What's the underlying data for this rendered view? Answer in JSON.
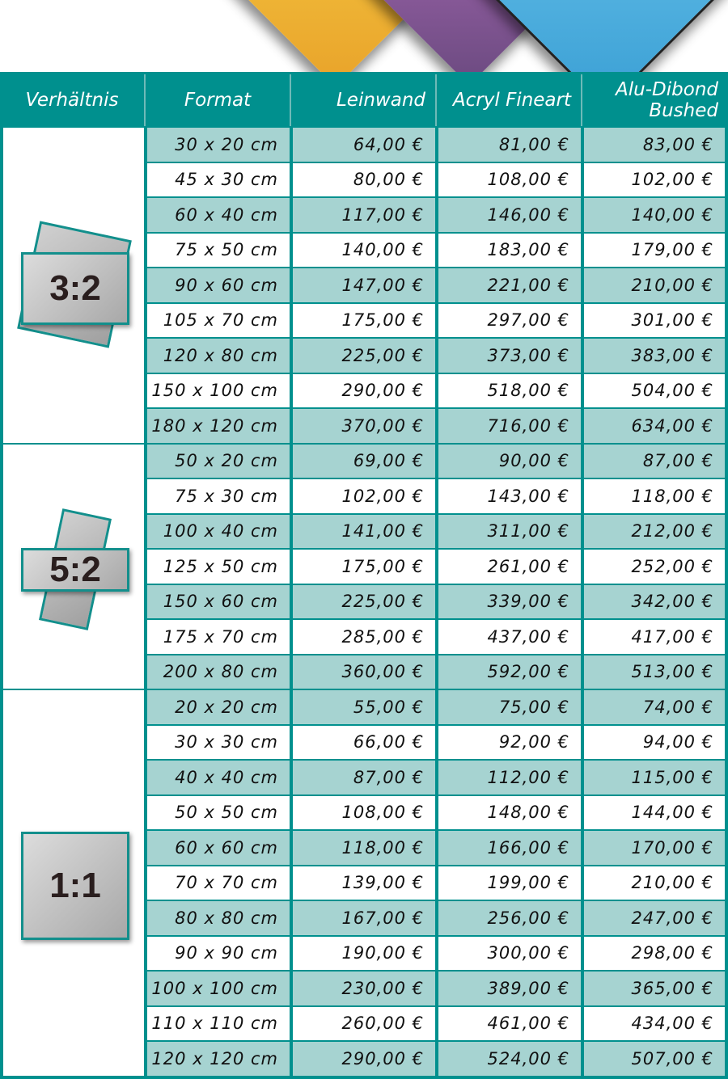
{
  "header": {
    "ratio": "Verhältnis",
    "format": "Format",
    "canvas": "Leinwand",
    "acryl": "Acryl Fineart",
    "alu": "Alu-Dibond Bushed"
  },
  "colors": {
    "teal": "#00908e",
    "row_alt": "#a6d3d1",
    "row": "#ffffff"
  },
  "groups": [
    {
      "ratio": "3:2",
      "rows": [
        [
          "30 x 20 cm",
          "64,00 €",
          "81,00 €",
          "83,00 €"
        ],
        [
          "45 x 30 cm",
          "80,00 €",
          "108,00 €",
          "102,00 €"
        ],
        [
          "60 x 40 cm",
          "117,00 €",
          "146,00 €",
          "140,00 €"
        ],
        [
          "75 x 50 cm",
          "140,00 €",
          "183,00 €",
          "179,00 €"
        ],
        [
          "90 x 60 cm",
          "147,00 €",
          "221,00 €",
          "210,00 €"
        ],
        [
          "105 x 70 cm",
          "175,00 €",
          "297,00 €",
          "301,00 €"
        ],
        [
          "120 x 80 cm",
          "225,00 €",
          "373,00 €",
          "383,00 €"
        ],
        [
          "150 x 100 cm",
          "290,00 €",
          "518,00 €",
          "504,00 €"
        ],
        [
          "180 x 120 cm",
          "370,00 €",
          "716,00 €",
          "634,00 €"
        ]
      ]
    },
    {
      "ratio": "5:2",
      "rows": [
        [
          "50 x 20 cm",
          "69,00 €",
          "90,00 €",
          "87,00 €"
        ],
        [
          "75 x 30 cm",
          "102,00 €",
          "143,00 €",
          "118,00 €"
        ],
        [
          "100 x 40 cm",
          "141,00 €",
          "311,00 €",
          "212,00 €"
        ],
        [
          "125 x 50 cm",
          "175,00 €",
          "261,00 €",
          "252,00 €"
        ],
        [
          "150 x 60 cm",
          "225,00 €",
          "339,00 €",
          "342,00 €"
        ],
        [
          "175 x 70 cm",
          "285,00 €",
          "437,00 €",
          "417,00 €"
        ],
        [
          "200 x 80 cm",
          "360,00 €",
          "592,00 €",
          "513,00 €"
        ]
      ]
    },
    {
      "ratio": "1:1",
      "rows": [
        [
          "20 x 20 cm",
          "55,00 €",
          "75,00 €",
          "74,00 €"
        ],
        [
          "30 x 30 cm",
          "66,00 €",
          "92,00 €",
          "94,00 €"
        ],
        [
          "40 x 40 cm",
          "87,00 €",
          "112,00 €",
          "115,00 €"
        ],
        [
          "50 x 50 cm",
          "108,00 €",
          "148,00 €",
          "144,00 €"
        ],
        [
          "60 x 60 cm",
          "118,00 €",
          "166,00 €",
          "170,00 €"
        ],
        [
          "70 x 70 cm",
          "139,00 €",
          "199,00 €",
          "210,00 €"
        ],
        [
          "80 x 80 cm",
          "167,00 €",
          "256,00 €",
          "247,00 €"
        ],
        [
          "90 x 90 cm",
          "190,00 €",
          "300,00 €",
          "298,00 €"
        ],
        [
          "100 x 100 cm",
          "230,00 €",
          "389,00 €",
          "365,00 €"
        ],
        [
          "110 x 110 cm",
          "260,00 €",
          "461,00 €",
          "434,00 €"
        ],
        [
          "120 x 120 cm",
          "290,00 €",
          "524,00 €",
          "507,00 €"
        ]
      ]
    }
  ]
}
